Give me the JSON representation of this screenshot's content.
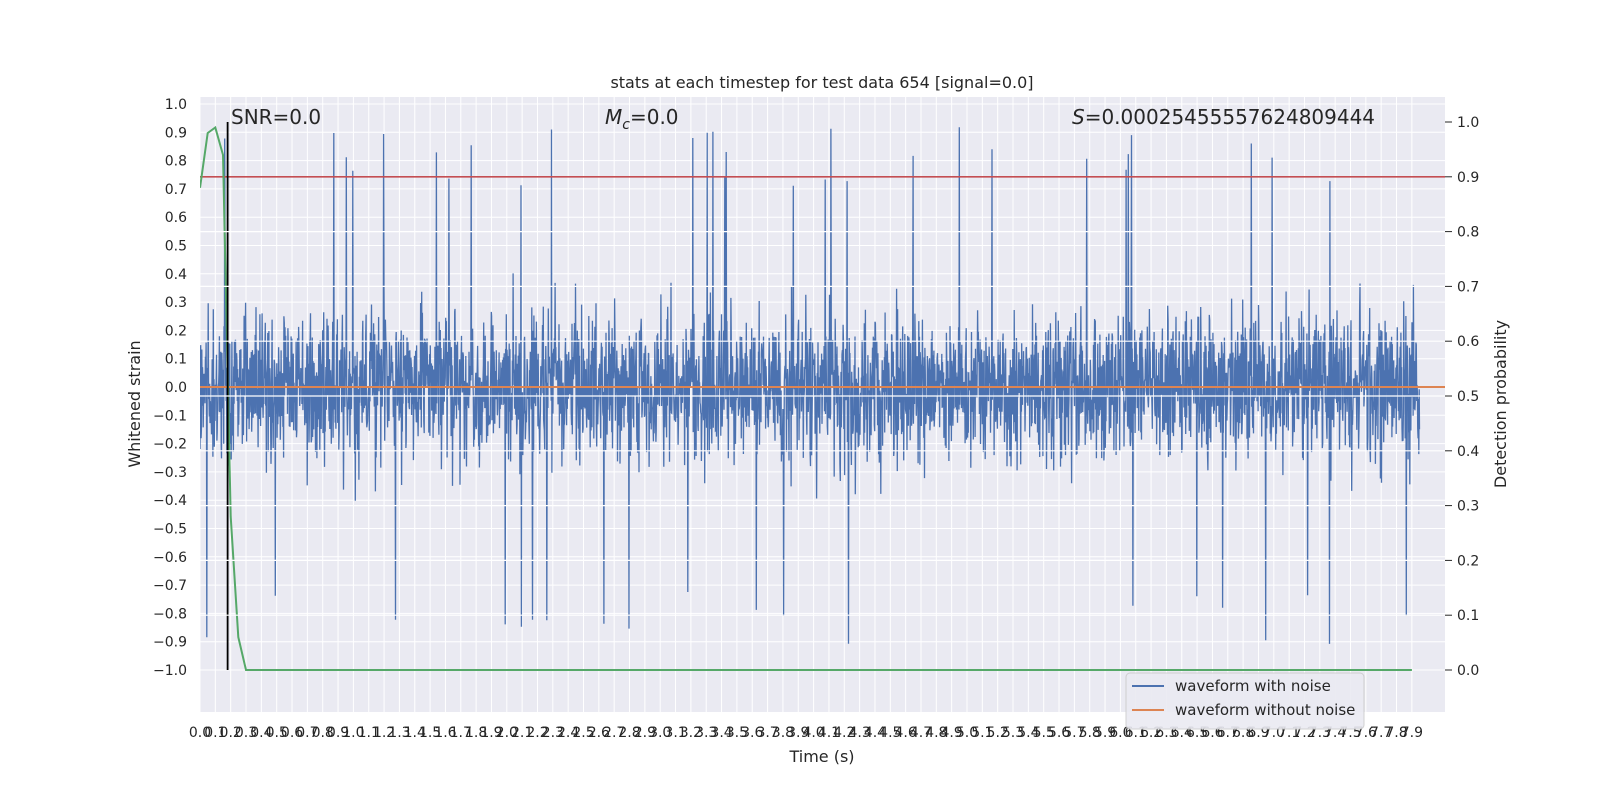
{
  "chart_data": {
    "type": "line",
    "title": "stats at each timestep for test data 654 [signal=0.0]",
    "xlabel": "Time (s)",
    "ylabel_left": "Whitened strain",
    "ylabel_right": "Detection probability",
    "xlim": [
      0,
      7.95
    ],
    "ylim_left": [
      -1.1,
      1.05
    ],
    "ylim_right": [
      -0.05,
      1.03
    ],
    "x_ticks": [
      "0.0",
      "0.1",
      "0.2",
      "0.3",
      "0.4",
      "0.5",
      "0.6",
      "0.7",
      "0.8",
      "0.9",
      "1.0",
      "1.1",
      "1.2",
      "1.3",
      "1.4",
      "1.5",
      "1.6",
      "1.7",
      "1.8",
      "1.9",
      "2.0",
      "2.1",
      "2.2",
      "2.3",
      "2.4",
      "2.5",
      "2.6",
      "2.7",
      "2.8",
      "2.9",
      "3.0",
      "3.1",
      "3.2",
      "3.3",
      "3.4",
      "3.5",
      "3.6",
      "3.7",
      "3.8",
      "3.9",
      "4.0",
      "4.1",
      "4.2",
      "4.3",
      "4.4",
      "4.5",
      "4.6",
      "4.7",
      "4.8",
      "4.9",
      "5.0",
      "5.1",
      "5.2",
      "5.3",
      "5.4",
      "5.5",
      "5.6",
      "5.7",
      "5.8",
      "5.9",
      "6.0",
      "6.1",
      "6.2",
      "6.3",
      "6.4",
      "6.5",
      "6.6",
      "6.7",
      "6.8",
      "6.9",
      "7.0",
      "7.1",
      "7.2",
      "7.3",
      "7.4",
      "7.5",
      "7.6",
      "7.7",
      "7.8",
      "7.9"
    ],
    "y_ticks_left": [
      "1.0",
      "0.9",
      "0.8",
      "0.7",
      "0.6",
      "0.5",
      "0.4",
      "0.3",
      "0.2",
      "0.1",
      "0.0",
      "−0.1",
      "−0.2",
      "−0.3",
      "−0.4",
      "−0.5",
      "−0.6",
      "−0.7",
      "−0.8",
      "−0.9",
      "−1.0"
    ],
    "y_ticks_left_values": [
      1.0,
      0.9,
      0.8,
      0.7,
      0.6,
      0.5,
      0.4,
      0.3,
      0.2,
      0.1,
      0.0,
      -0.1,
      -0.2,
      -0.3,
      -0.4,
      -0.5,
      -0.6,
      -0.7,
      -0.8,
      -0.9,
      -1.0
    ],
    "y_ticks_right": [
      "1.0",
      "0.9",
      "0.8",
      "0.7",
      "0.6",
      "0.5",
      "0.4",
      "0.3",
      "0.2",
      "0.1",
      "0.0"
    ],
    "y_ticks_right_values": [
      1.0,
      0.9,
      0.8,
      0.7,
      0.6,
      0.5,
      0.4,
      0.3,
      0.2,
      0.1,
      0.0
    ],
    "grid": true,
    "legend_position": "bottom-right",
    "annotations": {
      "snr": "SNR=0.0",
      "mc_symbol": "M",
      "mc_sub": "c",
      "mc_value": "=0.0",
      "s_symbol": "S",
      "s_value": "=0.00025455557624809444"
    },
    "series": [
      {
        "name": "waveform with noise",
        "color": "#4c72b0",
        "axis": "left",
        "description_values": "noise oscillating roughly between -0.9 and 0.93 with typical envelope ±0.4"
      },
      {
        "name": "waveform without noise",
        "color": "#dd8452",
        "axis": "left",
        "x": [
          0,
          7.95
        ],
        "y": [
          0.0,
          0.0
        ]
      },
      {
        "name": "",
        "color": "#55a868",
        "axis": "right",
        "x": [
          0.0,
          0.05,
          0.1,
          0.15,
          0.2,
          0.25,
          0.3,
          7.9
        ],
        "y": [
          0.88,
          0.98,
          0.99,
          0.94,
          0.28,
          0.06,
          0.0,
          0.0
        ]
      },
      {
        "name": "",
        "color": "#c44e52",
        "axis": "right",
        "x": [
          0,
          7.95
        ],
        "y": [
          0.9,
          0.9
        ]
      }
    ],
    "vline": {
      "x": 0.18,
      "color": "#000000"
    }
  }
}
